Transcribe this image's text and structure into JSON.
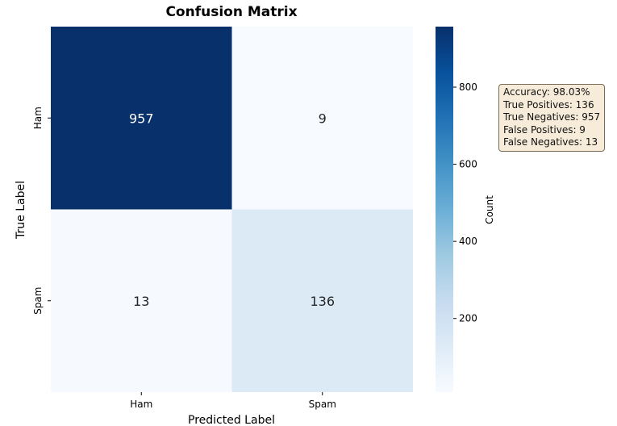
{
  "chart_data": {
    "type": "heatmap",
    "title": "Confusion Matrix",
    "xlabel": "Predicted Label",
    "ylabel": "True Label",
    "x_categories": [
      "Ham",
      "Spam"
    ],
    "y_categories": [
      "Ham",
      "Spam"
    ],
    "values": [
      [
        957,
        9
      ],
      [
        13,
        136
      ]
    ],
    "colormap": "Blues",
    "colorbar": {
      "label": "Count",
      "range": [
        9,
        957
      ],
      "ticks": [
        200,
        400,
        600,
        800
      ],
      "tick_labels": [
        "200",
        "400",
        "600",
        "800"
      ]
    }
  },
  "stats_box": {
    "lines": [
      "Accuracy: 98.03%",
      "True Positives: 136",
      "True Negatives: 957",
      "False Positives: 9",
      "False Negatives: 13"
    ]
  }
}
